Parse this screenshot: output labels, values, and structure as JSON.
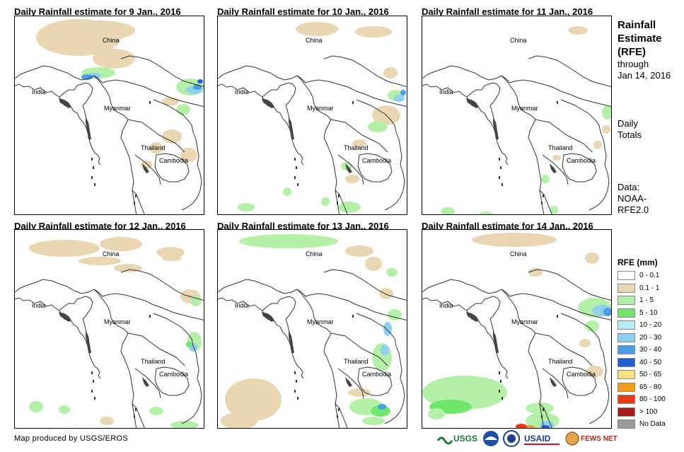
{
  "panels": [
    {
      "title": "Daily Rainfall estimate for 9 Jan., 2016",
      "day": 9
    },
    {
      "title": "Daily Rainfall estimate for 10 Jan., 2016",
      "day": 10
    },
    {
      "title": "Daily Rainfall estimate for 11 Jan., 2016",
      "day": 11
    },
    {
      "title": "Daily Rainfall estimate for 12 Jan., 2016",
      "day": 12
    },
    {
      "title": "Daily Rainfall estimate for 13 Jan., 2016",
      "day": 13
    },
    {
      "title": "Daily Rainfall estimate for 14 Jan., 2016",
      "day": 14
    }
  ],
  "labels": {
    "china": "China",
    "india": "India",
    "myanmar": "Myanmar",
    "thailand": "Thailand",
    "cambodia": "Cambodia"
  },
  "side": {
    "line1": "Rainfall",
    "line2": "Estimate",
    "line3": "(RFE)",
    "through": "through",
    "date": "Jan 14, 2016",
    "daily": "Daily",
    "totals": "Totals",
    "data": "Data:",
    "noaa": "NOAA-",
    "rfe2": "RFE2.0"
  },
  "legend": {
    "title": "RFE (mm)",
    "items": [
      {
        "label": "0 - 0.1",
        "color": "#ffffff"
      },
      {
        "label": "0.1 - 1",
        "color": "#e9d6b3"
      },
      {
        "label": "1 - 5",
        "color": "#b4f0a8"
      },
      {
        "label": "5 - 10",
        "color": "#6ee86a"
      },
      {
        "label": "10 - 20",
        "color": "#b4eef5"
      },
      {
        "label": "20 - 30",
        "color": "#8fd0f0"
      },
      {
        "label": "30 - 40",
        "color": "#4a9de8"
      },
      {
        "label": "40 - 50",
        "color": "#1f5ed6"
      },
      {
        "label": "50 - 65",
        "color": "#f5e07a"
      },
      {
        "label": "65 - 80",
        "color": "#f59a1a"
      },
      {
        "label": "80 - 100",
        "color": "#ee3a10"
      },
      {
        "label": "> 100",
        "color": "#a81c1c"
      },
      {
        "label": "No Data",
        "color": "#9a9a9a"
      }
    ]
  },
  "credit": "Map produced by USGS/EROS",
  "logos": {
    "usgs": "USGS",
    "usaid": "USAID",
    "fews": "FEWS NET"
  }
}
